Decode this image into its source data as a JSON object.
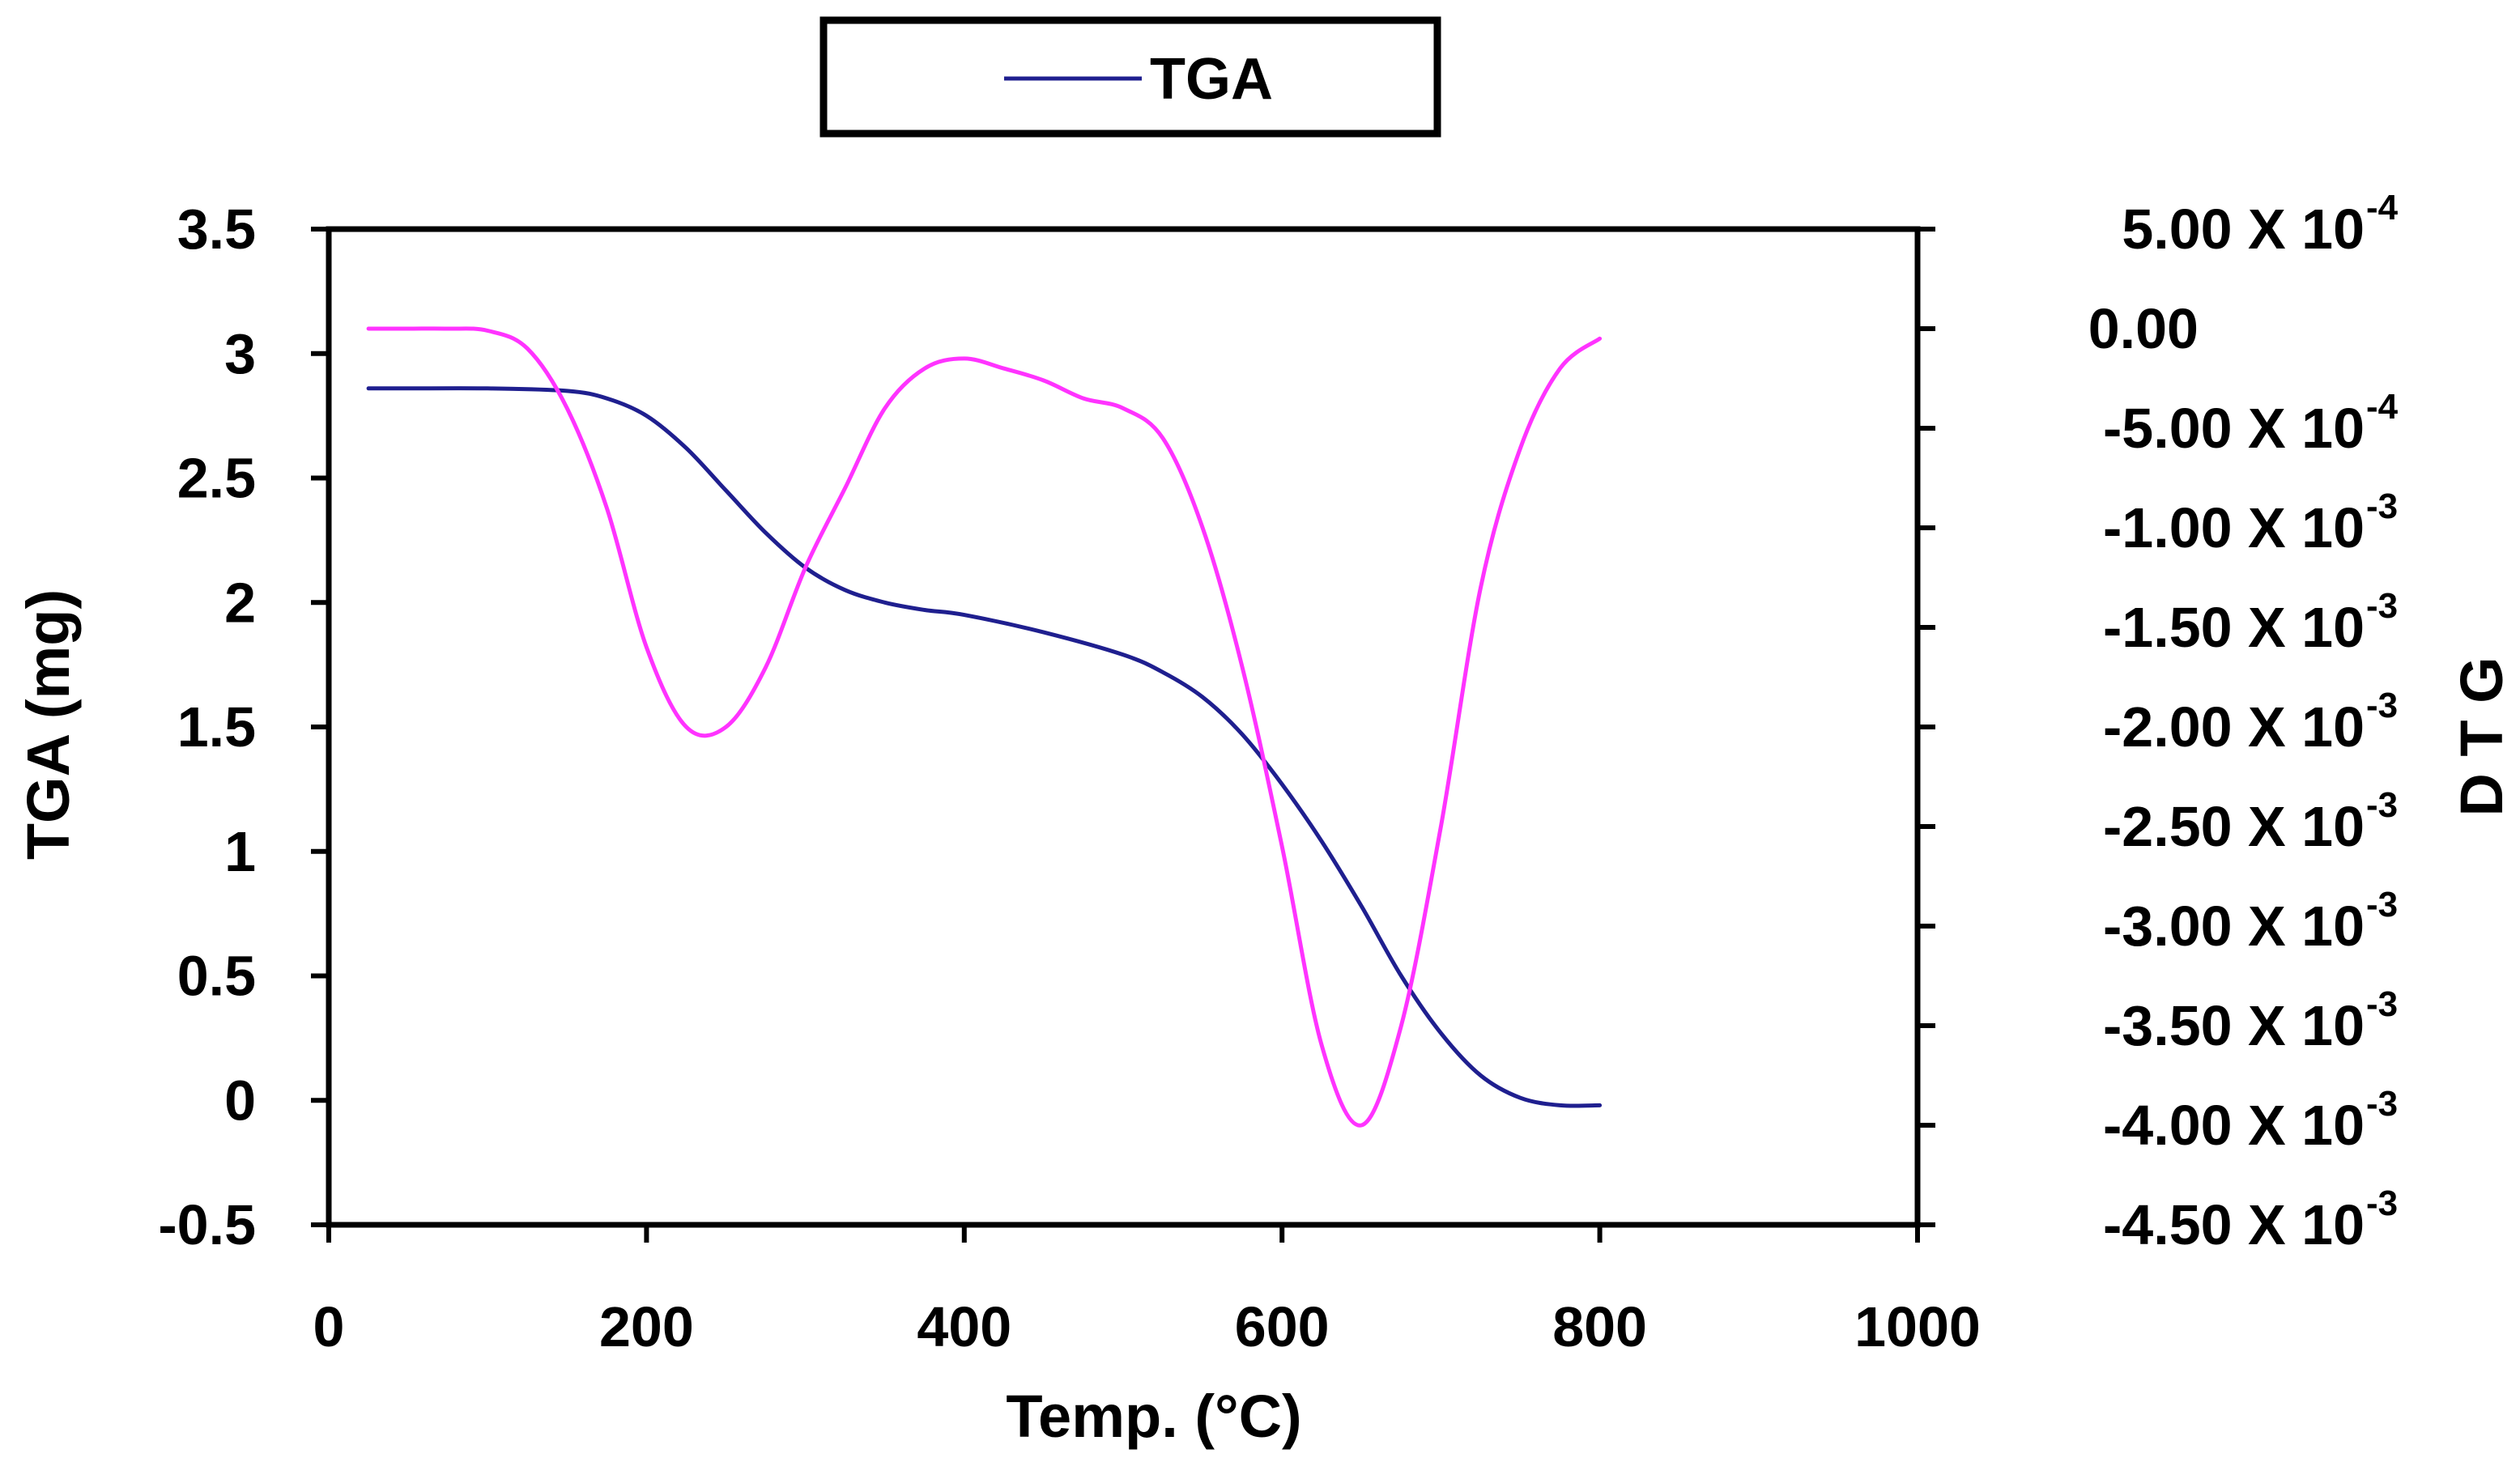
{
  "chart_data": {
    "type": "line",
    "title": "",
    "xlabel": "Temp. (°C)",
    "ylabel": "TGA (mg)",
    "y2label": "D T G",
    "xlim": [
      0,
      1000
    ],
    "ylim": [
      -0.5,
      3.5
    ],
    "y2lim": [
      -0.0045,
      0.0005
    ],
    "grid": false,
    "legend": {
      "position": "top-center",
      "entries": [
        "TGA"
      ]
    },
    "x_ticks": [
      "0",
      "200",
      "400",
      "600",
      "800",
      "1000"
    ],
    "y_ticks": [
      "3.5",
      "3",
      "2.5",
      "2",
      "1.5",
      "1",
      "0.5",
      "0",
      "-0.5"
    ],
    "y2_ticks": [
      {
        "mantissa": "5.00 X 10",
        "exp": "-4"
      },
      {
        "mantissa": "0.00",
        "exp": ""
      },
      {
        "mantissa": "-5.00 X 10",
        "exp": "-4"
      },
      {
        "mantissa": "-1.00 X 10",
        "exp": "-3"
      },
      {
        "mantissa": "-1.50 X 10",
        "exp": "-3"
      },
      {
        "mantissa": "-2.00 X 10",
        "exp": "-3"
      },
      {
        "mantissa": "-2.50 X 10",
        "exp": "-3"
      },
      {
        "mantissa": "-3.00 X 10",
        "exp": "-3"
      },
      {
        "mantissa": "-3.50 X 10",
        "exp": "-3"
      },
      {
        "mantissa": "-4.00 X 10",
        "exp": "-3"
      },
      {
        "mantissa": "-4.50 X 10",
        "exp": "-3"
      }
    ],
    "series": [
      {
        "name": "TGA",
        "axis": "left",
        "color": "#1f1f8f",
        "x": [
          25,
          50,
          100,
          150,
          175,
          200,
          225,
          250,
          275,
          300,
          325,
          350,
          375,
          400,
          450,
          500,
          525,
          550,
          575,
          600,
          625,
          650,
          675,
          700,
          725,
          750,
          775,
          800
        ],
        "y": [
          2.86,
          2.86,
          2.86,
          2.85,
          2.82,
          2.75,
          2.62,
          2.45,
          2.28,
          2.14,
          2.05,
          2.0,
          1.97,
          1.95,
          1.88,
          1.79,
          1.72,
          1.62,
          1.47,
          1.27,
          1.04,
          0.78,
          0.5,
          0.27,
          0.1,
          0.01,
          -0.02,
          -0.02
        ]
      },
      {
        "name": "DTG",
        "axis": "right",
        "color": "#ff33ff",
        "x": [
          25,
          50,
          75,
          100,
          125,
          150,
          175,
          200,
          225,
          250,
          275,
          300,
          325,
          350,
          375,
          400,
          425,
          450,
          475,
          500,
          525,
          550,
          575,
          600,
          625,
          650,
          675,
          700,
          725,
          750,
          775,
          800
        ],
        "y": [
          0.0,
          0.0,
          0.0,
          -1e-05,
          -0.0001,
          -0.0004,
          -0.0009,
          -0.0016,
          -0.002,
          -0.002,
          -0.0017,
          -0.0012,
          -0.0008,
          -0.0004,
          -0.0002,
          -0.00015,
          -0.0002,
          -0.00026,
          -0.00035,
          -0.0004,
          -0.00055,
          -0.001,
          -0.0017,
          -0.0026,
          -0.0036,
          -0.004,
          -0.0035,
          -0.0025,
          -0.0013,
          -0.0006,
          -0.0002,
          -5e-05
        ]
      }
    ]
  }
}
